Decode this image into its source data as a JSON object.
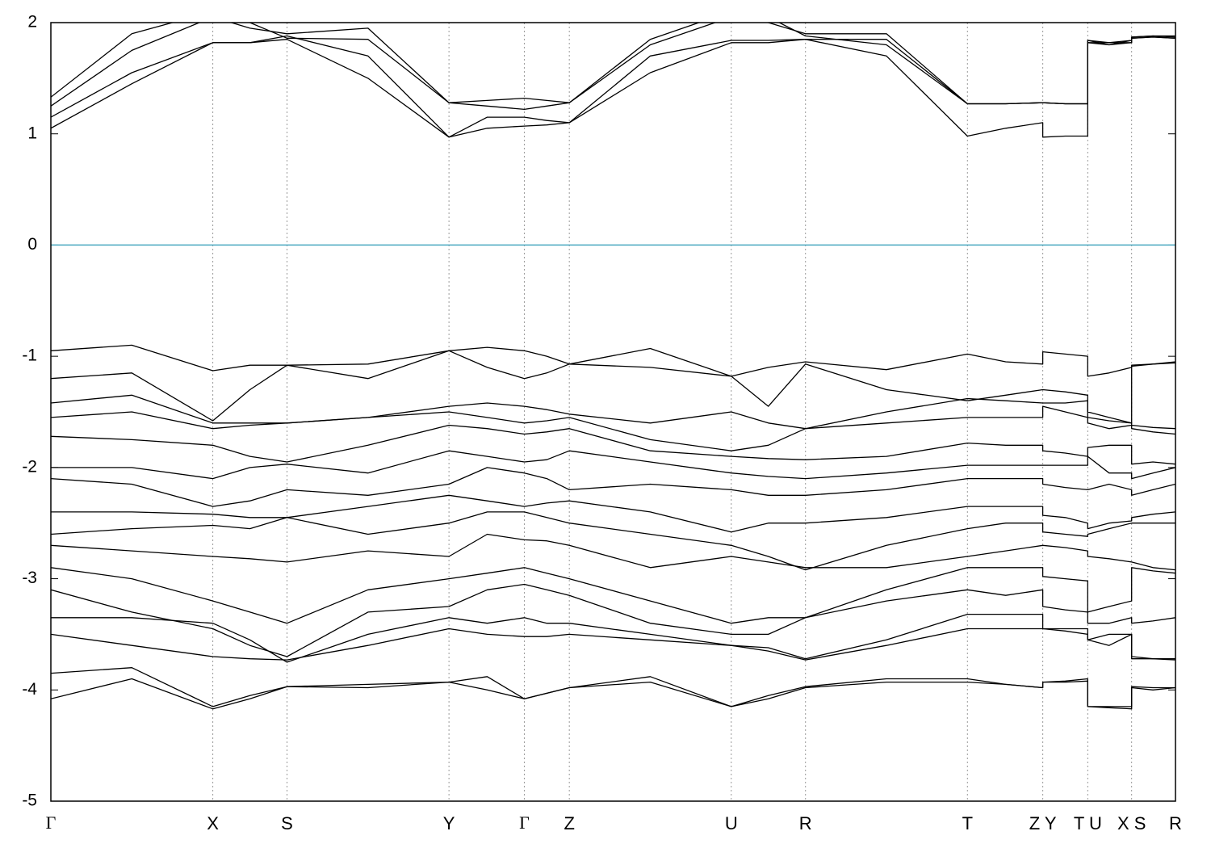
{
  "chart_data": {
    "type": "line",
    "x": [
      0,
      0.072,
      0.144,
      0.177,
      0.21,
      0.282,
      0.354,
      0.388,
      0.421,
      0.441,
      0.461,
      0.533,
      0.605,
      0.638,
      0.671,
      0.743,
      0.815,
      0.849,
      0.882,
      0.882,
      0.902,
      0.922,
      0.922,
      0.941,
      0.961,
      0.961,
      0.98,
      1.0
    ],
    "xlim": [
      0,
      1
    ],
    "xticks": [
      {
        "value": 0,
        "label": "Γ"
      },
      {
        "value": 0.144,
        "label": "X"
      },
      {
        "value": 0.21,
        "label": "S"
      },
      {
        "value": 0.354,
        "label": "Y"
      },
      {
        "value": 0.421,
        "label": "Γ"
      },
      {
        "value": 0.461,
        "label": "Z"
      },
      {
        "value": 0.605,
        "label": "U"
      },
      {
        "value": 0.671,
        "label": "R"
      },
      {
        "value": 0.815,
        "label": "T"
      },
      {
        "value": 0.882,
        "label": "Z Y"
      },
      {
        "value": 0.922,
        "label": "T U"
      },
      {
        "value": 0.961,
        "label": "X S"
      },
      {
        "value": 1.0,
        "label": "R"
      }
    ],
    "ylim": [
      -5,
      2
    ],
    "yticks": [
      -5,
      -4,
      -3,
      -2,
      -1,
      0,
      1,
      2
    ],
    "xgrid": true,
    "color": "#000000",
    "reference_line": {
      "value": 0,
      "color": "#4aa8c0"
    },
    "series": [
      {
        "values": [
          1.05,
          1.45,
          1.82,
          1.82,
          1.85,
          1.5,
          0.97,
          1.05,
          1.07,
          1.08,
          1.1,
          1.55,
          1.82,
          1.82,
          1.85,
          1.7,
          0.98,
          1.05,
          1.1,
          0.97,
          0.98,
          0.98,
          1.84,
          1.8,
          1.84,
          1.86,
          1.87,
          1.86
        ]
      },
      {
        "values": [
          1.15,
          1.55,
          1.82,
          1.82,
          1.88,
          1.7,
          0.97,
          1.15,
          1.15,
          1.12,
          1.1,
          1.7,
          1.84,
          1.84,
          1.85,
          1.85,
          1.27,
          1.27,
          1.28,
          1.28,
          1.27,
          1.27,
          1.82,
          1.82,
          1.82,
          1.87,
          1.88,
          1.88
        ]
      },
      {
        "values": [
          1.25,
          1.75,
          2.05,
          1.95,
          1.9,
          1.95,
          1.28,
          1.3,
          1.32,
          1.3,
          1.28,
          1.8,
          2.05,
          2.0,
          1.9,
          1.9,
          1.27,
          1.27,
          1.28,
          1.28,
          1.27,
          1.27,
          1.84,
          1.82,
          1.84,
          1.86,
          1.87,
          1.86
        ]
      },
      {
        "values": [
          1.33,
          1.9,
          2.1,
          2.0,
          1.86,
          1.85,
          1.28,
          1.25,
          1.22,
          1.25,
          1.28,
          1.85,
          2.1,
          2.05,
          1.88,
          1.8,
          1.27,
          1.27,
          1.28,
          1.28,
          1.27,
          1.27,
          1.82,
          1.8,
          1.82,
          1.87,
          1.88,
          1.87
        ]
      },
      {
        "values": [
          -0.95,
          -0.9,
          -1.13,
          -1.08,
          -1.08,
          -1.07,
          -0.95,
          -0.92,
          -0.95,
          -1.0,
          -1.07,
          -0.93,
          -1.18,
          -1.1,
          -1.05,
          -1.12,
          -0.98,
          -1.05,
          -1.07,
          -0.96,
          -0.98,
          -1.0,
          -1.18,
          -1.15,
          -1.1,
          -1.09,
          -1.07,
          -1.05
        ]
      },
      {
        "values": [
          -1.2,
          -1.15,
          -1.58,
          -1.3,
          -1.08,
          -1.2,
          -0.95,
          -1.1,
          -1.2,
          -1.15,
          -1.07,
          -1.1,
          -1.18,
          -1.45,
          -1.07,
          -1.3,
          -1.4,
          -1.35,
          -1.3,
          -1.3,
          -1.32,
          -1.35,
          -1.55,
          -1.58,
          -1.6,
          -1.08,
          -1.07,
          -1.06
        ]
      },
      {
        "values": [
          -1.42,
          -1.35,
          -1.6,
          -1.6,
          -1.6,
          -1.55,
          -1.45,
          -1.42,
          -1.45,
          -1.48,
          -1.52,
          -1.6,
          -1.5,
          -1.6,
          -1.65,
          -1.5,
          -1.38,
          -1.4,
          -1.42,
          -1.42,
          -1.42,
          -1.4,
          -1.5,
          -1.55,
          -1.6,
          -1.62,
          -1.64,
          -1.65
        ]
      },
      {
        "values": [
          -1.55,
          -1.5,
          -1.65,
          -1.62,
          -1.6,
          -1.55,
          -1.5,
          -1.55,
          -1.6,
          -1.58,
          -1.55,
          -1.75,
          -1.85,
          -1.8,
          -1.65,
          -1.6,
          -1.55,
          -1.55,
          -1.55,
          -1.45,
          -1.5,
          -1.55,
          -1.6,
          -1.65,
          -1.62,
          -1.65,
          -1.68,
          -1.7
        ]
      },
      {
        "values": [
          -1.72,
          -1.75,
          -1.8,
          -1.9,
          -1.95,
          -1.8,
          -1.62,
          -1.65,
          -1.7,
          -1.68,
          -1.65,
          -1.85,
          -1.9,
          -1.92,
          -1.93,
          -1.9,
          -1.78,
          -1.8,
          -1.8,
          -1.85,
          -1.87,
          -1.9,
          -1.82,
          -1.8,
          -1.8,
          -1.97,
          -1.95,
          -1.97
        ]
      },
      {
        "values": [
          -2.0,
          -2.0,
          -2.1,
          -2.0,
          -1.97,
          -2.05,
          -1.85,
          -1.9,
          -1.95,
          -1.93,
          -1.85,
          -1.95,
          -2.05,
          -2.08,
          -2.1,
          -2.05,
          -1.98,
          -1.98,
          -1.98,
          -1.98,
          -1.98,
          -1.98,
          -1.9,
          -2.05,
          -2.05,
          -2.1,
          -2.05,
          -2.0
        ]
      },
      {
        "values": [
          -2.1,
          -2.15,
          -2.35,
          -2.3,
          -2.2,
          -2.25,
          -2.15,
          -2.0,
          -2.05,
          -2.1,
          -2.2,
          -2.15,
          -2.2,
          -2.25,
          -2.25,
          -2.2,
          -2.1,
          -2.1,
          -2.1,
          -2.15,
          -2.18,
          -2.2,
          -2.2,
          -2.15,
          -2.2,
          -2.25,
          -2.2,
          -2.15
        ]
      },
      {
        "values": [
          -2.4,
          -2.4,
          -2.42,
          -2.45,
          -2.45,
          -2.35,
          -2.25,
          -2.3,
          -2.35,
          -2.32,
          -2.3,
          -2.4,
          -2.58,
          -2.5,
          -2.5,
          -2.45,
          -2.35,
          -2.35,
          -2.35,
          -2.43,
          -2.45,
          -2.5,
          -2.55,
          -2.5,
          -2.48,
          -2.45,
          -2.42,
          -2.4
        ]
      },
      {
        "values": [
          -2.6,
          -2.55,
          -2.52,
          -2.55,
          -2.45,
          -2.6,
          -2.5,
          -2.4,
          -2.4,
          -2.45,
          -2.5,
          -2.6,
          -2.7,
          -2.8,
          -2.92,
          -2.7,
          -2.55,
          -2.5,
          -2.5,
          -2.58,
          -2.6,
          -2.62,
          -2.6,
          -2.55,
          -2.5,
          -2.5,
          -2.5,
          -2.5
        ]
      },
      {
        "values": [
          -2.7,
          -2.75,
          -2.8,
          -2.82,
          -2.85,
          -2.75,
          -2.8,
          -2.6,
          -2.65,
          -2.66,
          -2.7,
          -2.9,
          -2.8,
          -2.85,
          -2.9,
          -2.9,
          -2.8,
          -2.75,
          -2.7,
          -2.7,
          -2.72,
          -2.75,
          -2.8,
          -2.82,
          -2.85,
          -2.85,
          -2.9,
          -2.92
        ]
      },
      {
        "values": [
          -2.9,
          -3.0,
          -3.2,
          -3.3,
          -3.4,
          -3.1,
          -3.0,
          -2.95,
          -2.9,
          -2.95,
          -3.0,
          -3.2,
          -3.4,
          -3.35,
          -3.35,
          -3.1,
          -2.9,
          -2.9,
          -2.9,
          -2.98,
          -3.0,
          -3.02,
          -3.3,
          -3.25,
          -3.2,
          -2.9,
          -2.93,
          -2.95
        ]
      },
      {
        "values": [
          -3.1,
          -3.3,
          -3.45,
          -3.6,
          -3.7,
          -3.3,
          -3.25,
          -3.1,
          -3.05,
          -3.1,
          -3.15,
          -3.4,
          -3.5,
          -3.5,
          -3.35,
          -3.2,
          -3.1,
          -3.15,
          -3.1,
          -3.25,
          -3.28,
          -3.3,
          -3.4,
          -3.4,
          -3.35,
          -3.4,
          -3.38,
          -3.35
        ]
      },
      {
        "values": [
          -3.35,
          -3.35,
          -3.4,
          -3.55,
          -3.75,
          -3.5,
          -3.35,
          -3.4,
          -3.35,
          -3.4,
          -3.4,
          -3.5,
          -3.6,
          -3.62,
          -3.72,
          -3.55,
          -3.32,
          -3.32,
          -3.32,
          -3.45,
          -3.47,
          -3.5,
          -3.55,
          -3.5,
          -3.5,
          -3.72,
          -3.72,
          -3.72
        ]
      },
      {
        "values": [
          -3.5,
          -3.6,
          -3.7,
          -3.72,
          -3.73,
          -3.6,
          -3.45,
          -3.5,
          -3.52,
          -3.52,
          -3.5,
          -3.55,
          -3.6,
          -3.65,
          -3.73,
          -3.6,
          -3.45,
          -3.45,
          -3.45,
          -3.45,
          -3.45,
          -3.45,
          -3.55,
          -3.6,
          -3.5,
          -3.7,
          -3.72,
          -3.73
        ]
      },
      {
        "values": [
          -3.85,
          -3.8,
          -4.15,
          -4.05,
          -3.97,
          -3.95,
          -3.93,
          -3.88,
          -4.08,
          -4.03,
          -3.98,
          -3.88,
          -4.15,
          -4.05,
          -3.97,
          -3.9,
          -3.9,
          -3.95,
          -3.98,
          -3.93,
          -3.92,
          -3.9,
          -4.15,
          -4.15,
          -4.15,
          -3.97,
          -3.98,
          -3.98
        ]
      },
      {
        "values": [
          -4.08,
          -3.9,
          -4.17,
          -4.08,
          -3.97,
          -3.98,
          -3.93,
          -4.0,
          -4.08,
          -4.03,
          -3.98,
          -3.93,
          -4.15,
          -4.08,
          -3.98,
          -3.93,
          -3.93,
          -3.95,
          -3.98,
          -3.93,
          -3.93,
          -3.92,
          -4.15,
          -4.16,
          -4.17,
          -3.98,
          -4.0,
          -3.98
        ]
      }
    ]
  }
}
